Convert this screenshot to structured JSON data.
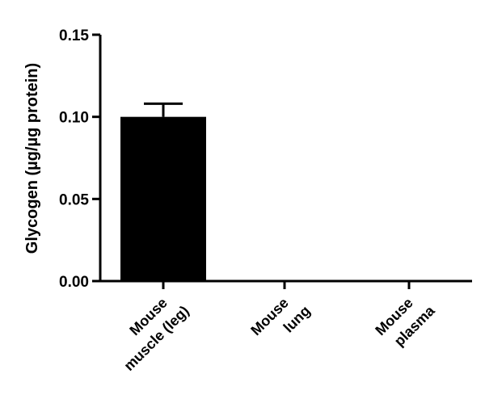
{
  "chart_data": {
    "type": "bar",
    "title": "",
    "xlabel": "",
    "ylabel": "Glycogen (µg/µg protein)",
    "ylim": [
      0,
      0.15
    ],
    "yticks": [
      0.0,
      0.05,
      0.1,
      0.15
    ],
    "ytick_labels": [
      "0.00",
      "0.05",
      "0.10",
      "0.15"
    ],
    "categories": [
      [
        "Mouse",
        "muscle (leg)"
      ],
      [
        "Mouse",
        "lung"
      ],
      [
        "Mouse",
        "plasma"
      ]
    ],
    "values": [
      0.1,
      0.0,
      0.0
    ],
    "error_upper": [
      0.008,
      0,
      0
    ],
    "bar_color": "#000000",
    "grid": false,
    "legend": "none"
  }
}
